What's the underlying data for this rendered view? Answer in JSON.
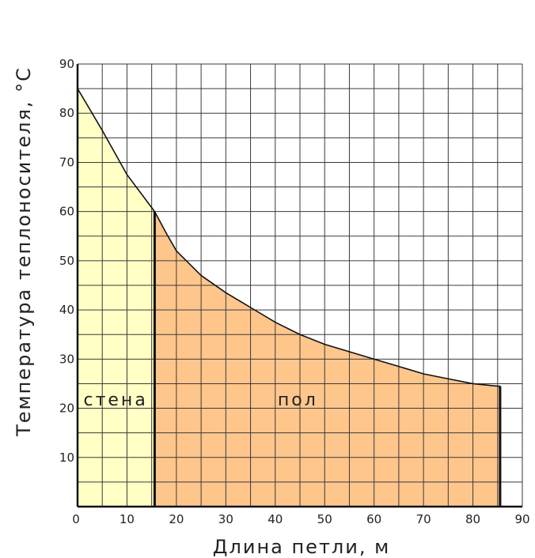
{
  "chart_data": {
    "type": "area",
    "xlabel": "Длина петли, м",
    "ylabel": "Температура теплоносителя, °С",
    "xlim": [
      0,
      90
    ],
    "ylim": [
      0,
      90
    ],
    "x_ticks": [
      0,
      10,
      20,
      30,
      40,
      50,
      60,
      70,
      80,
      90
    ],
    "y_ticks": [
      10,
      20,
      30,
      40,
      50,
      60,
      70,
      80,
      90
    ],
    "grid": true,
    "legend": "none",
    "curve": {
      "x": [
        0,
        5,
        10,
        15.6,
        18,
        20,
        25,
        30,
        35,
        40,
        45,
        50,
        55,
        60,
        65,
        70,
        75,
        80,
        85
      ],
      "y": [
        85,
        76.5,
        67.5,
        60,
        55.5,
        52,
        47,
        43.5,
        40.5,
        37.5,
        35,
        33,
        31.5,
        30,
        28.5,
        27,
        26,
        25,
        24.5
      ]
    },
    "regions": [
      {
        "label": "стена",
        "x_from": 0,
        "x_to": 15.6,
        "color": "#ffffc6"
      },
      {
        "label": "пол",
        "x_from": 15.6,
        "x_to": 85.5,
        "color": "#ffc68c"
      }
    ]
  }
}
